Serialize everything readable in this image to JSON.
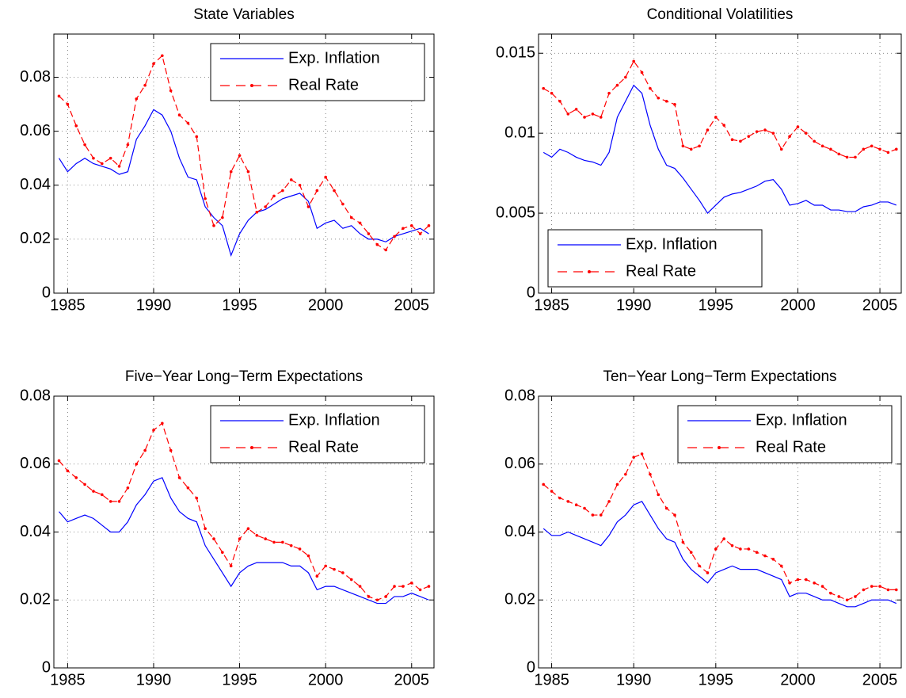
{
  "chart_data": [
    {
      "type": "line",
      "title": "State Variables",
      "x": [
        1984.5,
        1985,
        1985.5,
        1986,
        1986.5,
        1987,
        1987.5,
        1988,
        1988.5,
        1989,
        1989.5,
        1990,
        1990.5,
        1991,
        1991.5,
        1992,
        1992.5,
        1993,
        1993.5,
        1994,
        1994.5,
        1995,
        1995.5,
        1996,
        1996.5,
        1997,
        1997.5,
        1998,
        1998.5,
        1999,
        1999.5,
        2000,
        2000.5,
        2001,
        2001.5,
        2002,
        2002.5,
        2003,
        2003.5,
        2004,
        2004.5,
        2005,
        2005.5,
        2006
      ],
      "xlim": [
        1984.2,
        2006.3
      ],
      "xticks": [
        1985,
        1990,
        1995,
        2000,
        2005
      ],
      "ylim": [
        0,
        0.096
      ],
      "yticks": [
        0,
        0.02,
        0.04,
        0.06,
        0.08
      ],
      "grid": true,
      "legend": "upper right",
      "series": [
        {
          "name": "Exp. Inflation",
          "color": "#0000ff",
          "dash": "solid",
          "values": [
            0.05,
            0.045,
            0.048,
            0.05,
            0.048,
            0.047,
            0.046,
            0.044,
            0.045,
            0.057,
            0.062,
            0.068,
            0.066,
            0.06,
            0.05,
            0.043,
            0.042,
            0.032,
            0.028,
            0.025,
            0.014,
            0.022,
            0.027,
            0.03,
            0.031,
            0.033,
            0.035,
            0.036,
            0.037,
            0.034,
            0.024,
            0.026,
            0.027,
            0.024,
            0.025,
            0.022,
            0.02,
            0.02,
            0.019,
            0.021,
            0.022,
            0.023,
            0.024,
            0.022
          ]
        },
        {
          "name": "Real Rate",
          "color": "#ff0000",
          "dash": "dashed",
          "marker": "dot",
          "values": [
            0.073,
            0.07,
            0.062,
            0.055,
            0.05,
            0.048,
            0.05,
            0.047,
            0.055,
            0.072,
            0.077,
            0.085,
            0.088,
            0.075,
            0.066,
            0.063,
            0.058,
            0.035,
            0.025,
            0.028,
            0.045,
            0.051,
            0.045,
            0.03,
            0.032,
            0.036,
            0.038,
            0.042,
            0.04,
            0.032,
            0.038,
            0.043,
            0.038,
            0.033,
            0.028,
            0.026,
            0.022,
            0.018,
            0.016,
            0.021,
            0.024,
            0.025,
            0.022,
            0.025
          ]
        }
      ]
    },
    {
      "type": "line",
      "title": "Conditional Volatilities",
      "x": [
        1984.5,
        1985,
        1985.5,
        1986,
        1986.5,
        1987,
        1987.5,
        1988,
        1988.5,
        1989,
        1989.5,
        1990,
        1990.5,
        1991,
        1991.5,
        1992,
        1992.5,
        1993,
        1993.5,
        1994,
        1994.5,
        1995,
        1995.5,
        1996,
        1996.5,
        1997,
        1997.5,
        1998,
        1998.5,
        1999,
        1999.5,
        2000,
        2000.5,
        2001,
        2001.5,
        2002,
        2002.5,
        2003,
        2003.5,
        2004,
        2004.5,
        2005,
        2005.5,
        2006
      ],
      "xlim": [
        1984.2,
        2006.3
      ],
      "xticks": [
        1985,
        1990,
        1995,
        2000,
        2005
      ],
      "ylim": [
        0,
        0.0162
      ],
      "yticks": [
        0,
        0.005,
        0.01,
        0.015
      ],
      "grid": true,
      "legend": "lower left",
      "series": [
        {
          "name": "Exp. Inflation",
          "color": "#0000ff",
          "dash": "solid",
          "values": [
            0.0088,
            0.0085,
            0.009,
            0.0088,
            0.0085,
            0.0083,
            0.0082,
            0.008,
            0.0088,
            0.011,
            0.012,
            0.013,
            0.0125,
            0.0105,
            0.009,
            0.008,
            0.0078,
            0.0072,
            0.0065,
            0.0058,
            0.005,
            0.0055,
            0.006,
            0.0062,
            0.0063,
            0.0065,
            0.0067,
            0.007,
            0.0071,
            0.0065,
            0.0055,
            0.0056,
            0.0058,
            0.0055,
            0.0055,
            0.0052,
            0.0052,
            0.0051,
            0.0051,
            0.0054,
            0.0055,
            0.0057,
            0.0057,
            0.0055
          ]
        },
        {
          "name": "Real Rate",
          "color": "#ff0000",
          "dash": "dashed",
          "marker": "dot",
          "values": [
            0.0128,
            0.0125,
            0.012,
            0.0112,
            0.0115,
            0.011,
            0.0112,
            0.011,
            0.0125,
            0.013,
            0.0135,
            0.0145,
            0.0138,
            0.0128,
            0.0122,
            0.012,
            0.0118,
            0.0092,
            0.009,
            0.0092,
            0.0102,
            0.011,
            0.0105,
            0.0096,
            0.0095,
            0.0098,
            0.0101,
            0.0102,
            0.01,
            0.009,
            0.0098,
            0.0104,
            0.01,
            0.0095,
            0.0092,
            0.009,
            0.0087,
            0.0085,
            0.0085,
            0.009,
            0.0092,
            0.009,
            0.0088,
            0.009
          ]
        }
      ]
    },
    {
      "type": "line",
      "title": "Five−Year Long−Term Expectations",
      "x": [
        1984.5,
        1985,
        1985.5,
        1986,
        1986.5,
        1987,
        1987.5,
        1988,
        1988.5,
        1989,
        1989.5,
        1990,
        1990.5,
        1991,
        1991.5,
        1992,
        1992.5,
        1993,
        1993.5,
        1994,
        1994.5,
        1995,
        1995.5,
        1996,
        1996.5,
        1997,
        1997.5,
        1998,
        1998.5,
        1999,
        1999.5,
        2000,
        2000.5,
        2001,
        2001.5,
        2002,
        2002.5,
        2003,
        2003.5,
        2004,
        2004.5,
        2005,
        2005.5,
        2006
      ],
      "xlim": [
        1984.2,
        2006.3
      ],
      "xticks": [
        1985,
        1990,
        1995,
        2000,
        2005
      ],
      "ylim": [
        0,
        0.08
      ],
      "yticks": [
        0,
        0.02,
        0.04,
        0.06,
        0.08
      ],
      "grid": true,
      "legend": "upper right",
      "series": [
        {
          "name": "Exp. Inflation",
          "color": "#0000ff",
          "dash": "solid",
          "values": [
            0.046,
            0.043,
            0.044,
            0.045,
            0.044,
            0.042,
            0.04,
            0.04,
            0.043,
            0.048,
            0.051,
            0.055,
            0.056,
            0.05,
            0.046,
            0.044,
            0.043,
            0.036,
            0.032,
            0.028,
            0.024,
            0.028,
            0.03,
            0.031,
            0.031,
            0.031,
            0.031,
            0.03,
            0.03,
            0.028,
            0.023,
            0.024,
            0.024,
            0.023,
            0.022,
            0.021,
            0.02,
            0.019,
            0.019,
            0.021,
            0.021,
            0.022,
            0.021,
            0.02
          ]
        },
        {
          "name": "Real Rate",
          "color": "#ff0000",
          "dash": "dashed",
          "marker": "dot",
          "values": [
            0.061,
            0.058,
            0.056,
            0.054,
            0.052,
            0.051,
            0.049,
            0.049,
            0.053,
            0.06,
            0.064,
            0.07,
            0.072,
            0.064,
            0.056,
            0.053,
            0.05,
            0.041,
            0.038,
            0.034,
            0.03,
            0.038,
            0.041,
            0.039,
            0.038,
            0.037,
            0.037,
            0.036,
            0.035,
            0.033,
            0.027,
            0.03,
            0.029,
            0.028,
            0.026,
            0.024,
            0.021,
            0.02,
            0.021,
            0.024,
            0.024,
            0.025,
            0.023,
            0.024
          ]
        }
      ]
    },
    {
      "type": "line",
      "title": "Ten−Year Long−Term Expectations",
      "x": [
        1984.5,
        1985,
        1985.5,
        1986,
        1986.5,
        1987,
        1987.5,
        1988,
        1988.5,
        1989,
        1989.5,
        1990,
        1990.5,
        1991,
        1991.5,
        1992,
        1992.5,
        1993,
        1993.5,
        1994,
        1994.5,
        1995,
        1995.5,
        1996,
        1996.5,
        1997,
        1997.5,
        1998,
        1998.5,
        1999,
        1999.5,
        2000,
        2000.5,
        2001,
        2001.5,
        2002,
        2002.5,
        2003,
        2003.5,
        2004,
        2004.5,
        2005,
        2005.5,
        2006
      ],
      "xlim": [
        1984.2,
        2006.3
      ],
      "xticks": [
        1985,
        1990,
        1995,
        2000,
        2005
      ],
      "ylim": [
        0,
        0.08
      ],
      "yticks": [
        0,
        0.02,
        0.04,
        0.06,
        0.08
      ],
      "grid": true,
      "legend": "upper right",
      "series": [
        {
          "name": "Exp. Inflation",
          "color": "#0000ff",
          "dash": "solid",
          "values": [
            0.041,
            0.039,
            0.039,
            0.04,
            0.039,
            0.038,
            0.037,
            0.036,
            0.039,
            0.043,
            0.045,
            0.048,
            0.049,
            0.045,
            0.041,
            0.038,
            0.037,
            0.032,
            0.029,
            0.027,
            0.025,
            0.028,
            0.029,
            0.03,
            0.029,
            0.029,
            0.029,
            0.028,
            0.027,
            0.026,
            0.021,
            0.022,
            0.022,
            0.021,
            0.02,
            0.02,
            0.019,
            0.018,
            0.018,
            0.019,
            0.02,
            0.02,
            0.02,
            0.019
          ]
        },
        {
          "name": "Real Rate",
          "color": "#ff0000",
          "dash": "dashed",
          "marker": "dot",
          "values": [
            0.054,
            0.052,
            0.05,
            0.049,
            0.048,
            0.047,
            0.045,
            0.045,
            0.049,
            0.054,
            0.057,
            0.062,
            0.063,
            0.057,
            0.051,
            0.047,
            0.045,
            0.037,
            0.034,
            0.03,
            0.028,
            0.035,
            0.038,
            0.036,
            0.035,
            0.035,
            0.034,
            0.033,
            0.032,
            0.03,
            0.025,
            0.026,
            0.026,
            0.025,
            0.024,
            0.022,
            0.021,
            0.02,
            0.021,
            0.023,
            0.024,
            0.024,
            0.023,
            0.023
          ]
        }
      ]
    }
  ]
}
